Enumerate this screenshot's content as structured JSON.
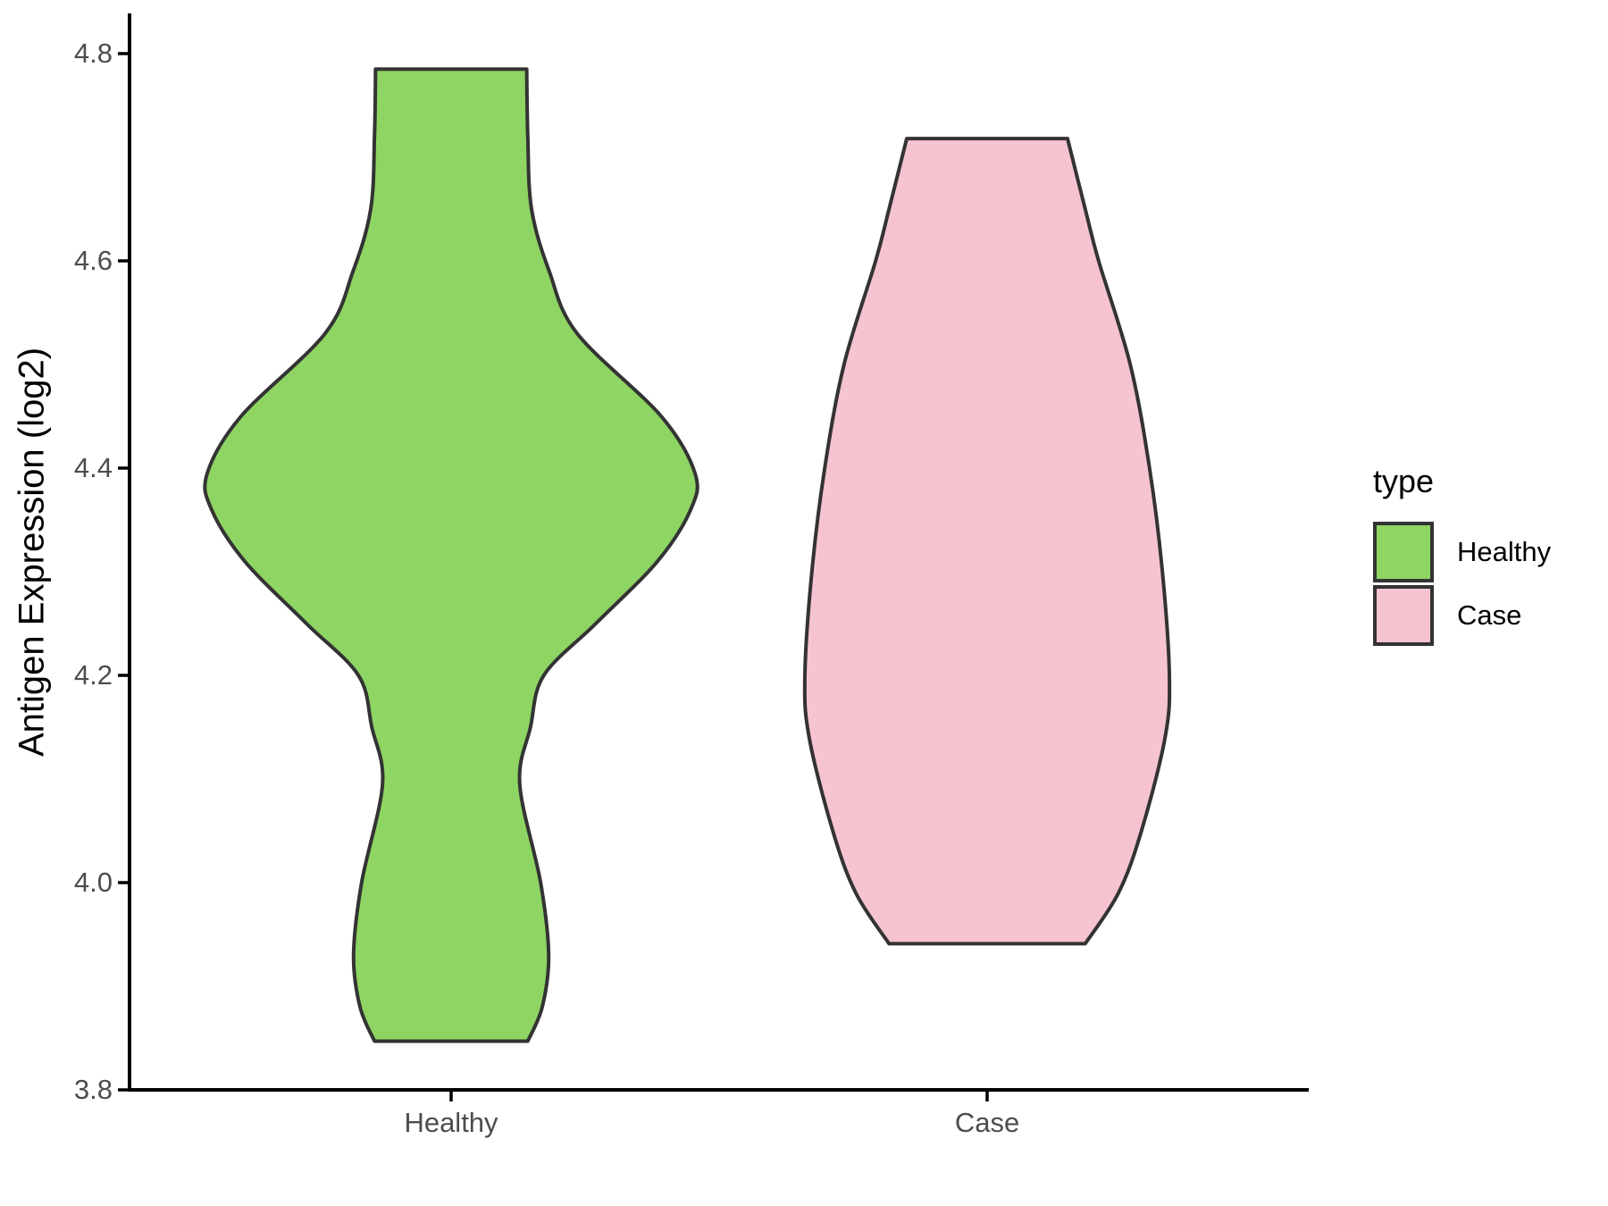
{
  "chart_data": {
    "type": "violin",
    "title": "",
    "y_axis": {
      "label": "Antigen Expression (log2)",
      "ticks": [
        "3.8",
        "4.0",
        "4.2",
        "4.4",
        "4.6",
        "4.8"
      ],
      "tick_values": [
        3.8,
        4.0,
        4.2,
        4.4,
        4.6,
        4.8
      ],
      "range": [
        3.8,
        4.84
      ]
    },
    "x_axis": {
      "categories": [
        "Healthy",
        "Case"
      ]
    },
    "grid": false,
    "legend_position": "right",
    "legend": {
      "title": "type",
      "entries": [
        {
          "label": "Healthy",
          "color": "#8ED563"
        },
        {
          "label": "Case",
          "color": "#F6C3D0"
        }
      ]
    },
    "colors": {
      "healthy_fill": "#8ED563",
      "case_fill": "#F6C3D0",
      "outline": "#333333",
      "axis_line": "#000000",
      "tick_label": "#4D4D4D",
      "text": "#000000"
    },
    "series": [
      {
        "name": "Healthy",
        "color": "#8ED563",
        "x": 1,
        "min": 3.847,
        "max": 4.785,
        "profile": [
          [
            4.785,
            0.141
          ],
          [
            4.72,
            0.143
          ],
          [
            4.65,
            0.15
          ],
          [
            4.59,
            0.183
          ],
          [
            4.53,
            0.235
          ],
          [
            4.45,
            0.392
          ],
          [
            4.395,
            0.455
          ],
          [
            4.36,
            0.447
          ],
          [
            4.31,
            0.385
          ],
          [
            4.25,
            0.27
          ],
          [
            4.2,
            0.173
          ],
          [
            4.15,
            0.148
          ],
          [
            4.095,
            0.128
          ],
          [
            4.0,
            0.167
          ],
          [
            3.93,
            0.182
          ],
          [
            3.88,
            0.17
          ],
          [
            3.847,
            0.143
          ]
        ]
      },
      {
        "name": "Case",
        "color": "#F6C3D0",
        "x": 2,
        "min": 3.941,
        "max": 4.718,
        "profile": [
          [
            4.718,
            0.15
          ],
          [
            4.65,
            0.183
          ],
          [
            4.6,
            0.208
          ],
          [
            4.5,
            0.267
          ],
          [
            4.4,
            0.303
          ],
          [
            4.3,
            0.327
          ],
          [
            4.2,
            0.34
          ],
          [
            4.14,
            0.332
          ],
          [
            4.05,
            0.288
          ],
          [
            3.99,
            0.245
          ],
          [
            3.941,
            0.183
          ]
        ]
      }
    ]
  }
}
